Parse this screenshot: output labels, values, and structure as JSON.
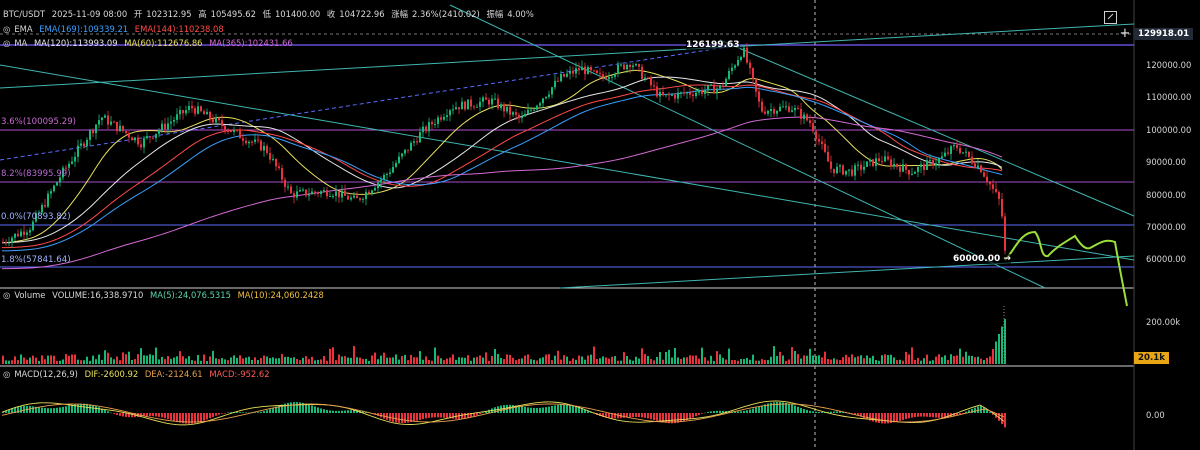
{
  "header": {
    "pair": "BTC/USDT",
    "datetime": "2025-11-09 08:00",
    "open_label": "开",
    "open": "102312.95",
    "high_label": "高",
    "high": "105495.62",
    "low_label": "低",
    "low": "101400.00",
    "close_label": "收",
    "close": "104722.96",
    "change_label": "涨幅",
    "change": "2.36%(2410.02)",
    "amp_label": "振幅",
    "amp": "4.00%"
  },
  "ema_row": {
    "name": "EMA",
    "ema169": "EMA(169):109339.21",
    "ema144": "EMA(144):110238.08"
  },
  "ma_row": {
    "name": "MA",
    "ma120": "MA(120):113993.09",
    "ma60": "MA(60):112676.86",
    "ma365": "MA(365):102431.66"
  },
  "price_axis": {
    "top_tag": "129918.01",
    "ticks": [
      "120000.00",
      "110000.00",
      "100000.00",
      "90000.00",
      "80000.00",
      "70000.00",
      "60000.00"
    ]
  },
  "fib_levels": [
    "3.6%(100095.29)",
    "8.2%(83995.99)",
    "0.0%(70893.82)",
    "1.8%(57841.64)"
  ],
  "annotations": {
    "peak": "126199.63",
    "low_mark": "60000.00"
  },
  "volume": {
    "label": "Volume",
    "value": "VOLUME:16,338.9710",
    "ma5": "MA(5):24,076.5315",
    "ma10": "MA(10):24,060.2428",
    "axis_tick": "200.00k",
    "current_tag": "20.1k"
  },
  "macd": {
    "label": "MACD(12,26,9)",
    "dif": "DIF:-2600.92",
    "dea": "DEA:-2124.61",
    "macd": "MACD:-952.62",
    "axis_tick": "0.00"
  },
  "icons": [
    "eye-icon",
    "expand-icon",
    "plus-icon"
  ],
  "colors": {
    "background": "#000000",
    "up": "#17b979",
    "down": "#e8323c",
    "ema169": "#3aa0ff",
    "ema144": "#ff4a4a",
    "ma120": "#e8e8e8",
    "ma60": "#e8e05a",
    "ma365": "#d36ad3",
    "projection": "#9be03a"
  }
}
